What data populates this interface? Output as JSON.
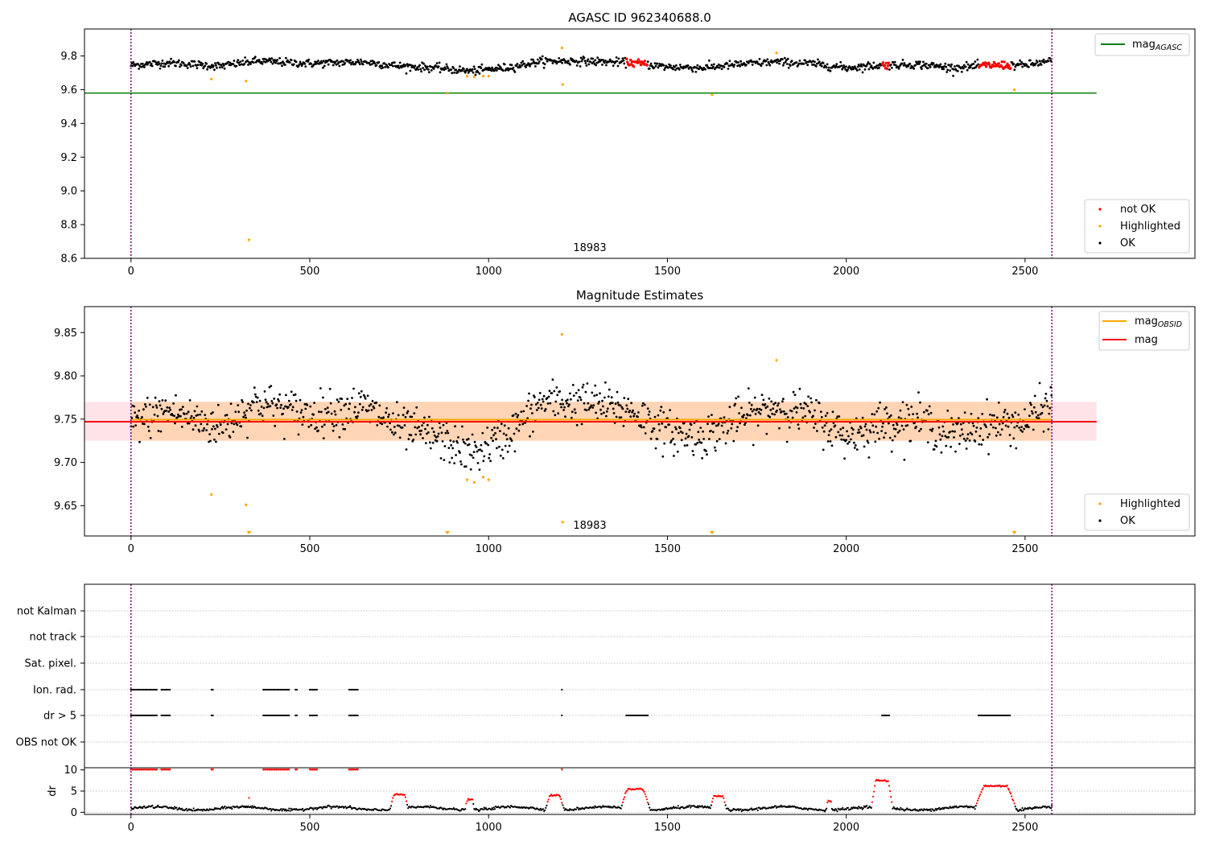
{
  "chart_data": [
    {
      "type": "scatter",
      "title": "AGASC ID 962340688.0",
      "xlabel": "",
      "ylabel": "",
      "xlim": [
        -130,
        2975
      ],
      "ylim": [
        8.6,
        9.96
      ],
      "x_ticks": [
        0,
        500,
        1000,
        1500,
        2000,
        2500
      ],
      "y_ticks": [
        8.6,
        8.8,
        9.0,
        9.2,
        9.4,
        9.6,
        9.8
      ],
      "vlines": [
        0,
        2575
      ],
      "vline_color": "#800080",
      "hline": {
        "name": "mag$_{AGASC}$",
        "label_main": "mag",
        "label_sub": "AGASC",
        "y": 9.58,
        "xmin": -130,
        "xmax": 2700,
        "color": "#008000"
      },
      "annotation": {
        "text": "18983",
        "x": 1225,
        "y": 8.63
      },
      "legend_top": [
        {
          "label_main": "mag",
          "label_sub": "AGASC",
          "color": "#008000",
          "marker": "line"
        }
      ],
      "legend_bottom": [
        {
          "label": "not OK",
          "color": "#ff0000",
          "marker": "dot"
        },
        {
          "label": "Highlighted",
          "color": "#ffa500",
          "marker": "dot"
        },
        {
          "label": "OK",
          "color": "#000000",
          "marker": "dot"
        }
      ],
      "series": [
        {
          "name": "OK",
          "color": "#000000",
          "trend_x": [
            0,
            100,
            250,
            350,
            500,
            650,
            750,
            850,
            950,
            1050,
            1150,
            1250,
            1400,
            1500,
            1600,
            1700,
            1800,
            1900,
            2000,
            2100,
            2200,
            2300,
            2400,
            2500,
            2575
          ],
          "trend_y": [
            9.745,
            9.76,
            9.74,
            9.77,
            9.755,
            9.765,
            9.74,
            9.73,
            9.71,
            9.73,
            9.77,
            9.77,
            9.76,
            9.735,
            9.73,
            9.75,
            9.765,
            9.755,
            9.73,
            9.745,
            9.75,
            9.73,
            9.745,
            9.745,
            9.77
          ]
        },
        {
          "name": "not OK",
          "color": "#ff0000",
          "x_ranges": [
            [
              1385,
              1445
            ],
            [
              2100,
              2120
            ],
            [
              2370,
              2460
            ]
          ],
          "y": 9.74
        },
        {
          "name": "Highlighted",
          "color": "#ffa500",
          "points": [
            [
              225,
              9.663
            ],
            [
              322,
              9.651
            ],
            [
              330,
              8.71
            ],
            [
              885,
              9.58
            ],
            [
              940,
              9.68
            ],
            [
              960,
              9.676
            ],
            [
              985,
              9.68
            ],
            [
              1000,
              9.68
            ],
            [
              1205,
              9.848
            ],
            [
              1207,
              9.631
            ],
            [
              1625,
              9.57
            ],
            [
              1805,
              9.818
            ],
            [
              2470,
              9.6
            ]
          ]
        }
      ]
    },
    {
      "type": "scatter",
      "title": "Magnitude Estimates",
      "xlabel": "",
      "ylabel": "",
      "xlim": [
        -130,
        2975
      ],
      "ylim": [
        9.615,
        9.88
      ],
      "x_ticks": [
        0,
        500,
        1000,
        1500,
        2000,
        2500
      ],
      "y_ticks": [
        9.65,
        9.7,
        9.75,
        9.8,
        9.85
      ],
      "y_tick_labels": [
        "9.65",
        "9.70",
        "9.75",
        "9.80",
        "9.85"
      ],
      "vlines": [
        0,
        2575
      ],
      "annotation": {
        "text": "18983",
        "x": 1225,
        "y": 9.628
      },
      "mag_line": {
        "name": "mag",
        "y": 9.747,
        "xmin": -130,
        "xmax": 2700,
        "color": "#ff0000"
      },
      "mag_obsid_line": {
        "label_main": "mag",
        "label_sub": "OBSID",
        "y": 9.748,
        "xmin": 0,
        "xmax": 2575,
        "color": "#ffa500"
      },
      "band": {
        "ymin": 9.725,
        "ymax": 9.77
      },
      "legend_top": [
        {
          "label_main": "mag",
          "label_sub": "OBSID",
          "color": "#ffa500",
          "marker": "line"
        },
        {
          "label_main": "mag",
          "label_sub": "",
          "color": "#ff0000",
          "marker": "line"
        }
      ],
      "legend_bottom": [
        {
          "label": "Highlighted",
          "color": "#ffa500",
          "marker": "dot"
        },
        {
          "label": "OK",
          "color": "#000000",
          "marker": "dot"
        }
      ],
      "series": [
        {
          "name": "OK",
          "color": "#000000",
          "trend_x": [
            0,
            100,
            250,
            350,
            500,
            650,
            750,
            850,
            950,
            1050,
            1150,
            1250,
            1400,
            1500,
            1600,
            1700,
            1800,
            1900,
            2000,
            2100,
            2200,
            2300,
            2400,
            2500,
            2575
          ],
          "trend_y": [
            9.745,
            9.76,
            9.74,
            9.77,
            9.755,
            9.765,
            9.74,
            9.73,
            9.71,
            9.73,
            9.77,
            9.77,
            9.76,
            9.735,
            9.73,
            9.75,
            9.765,
            9.755,
            9.73,
            9.745,
            9.75,
            9.73,
            9.745,
            9.745,
            9.77
          ]
        },
        {
          "name": "Highlighted",
          "color": "#ffa500",
          "points": [
            [
              225,
              9.663
            ],
            [
              322,
              9.651
            ],
            [
              940,
              9.68
            ],
            [
              960,
              9.677
            ],
            [
              985,
              9.683
            ],
            [
              1000,
              9.68
            ],
            [
              1205,
              9.848
            ],
            [
              1207,
              9.631
            ],
            [
              1805,
              9.818
            ]
          ],
          "below_range_x": [
            330,
            885,
            1625,
            2470
          ]
        }
      ]
    },
    {
      "type": "scatter",
      "title": "",
      "xlim": [
        -130,
        2975
      ],
      "x_ticks": [
        0,
        500,
        1000,
        1500,
        2000,
        2500
      ],
      "vlines": [
        0,
        2575
      ],
      "categories": [
        "not Kalman",
        "not track",
        "Sat. pixel.",
        "Ion. rad.",
        "dr > 5",
        "OBS not OK"
      ],
      "flag_ranges": {
        "Ion. rad.": [
          [
            0,
            75
          ],
          [
            85,
            110
          ],
          [
            225,
            230
          ],
          [
            370,
            445
          ],
          [
            460,
            465
          ],
          [
            500,
            520
          ],
          [
            610,
            635
          ],
          [
            1205,
            1208
          ]
        ],
        "dr > 5": [
          [
            0,
            75
          ],
          [
            85,
            110
          ],
          [
            225,
            230
          ],
          [
            370,
            445
          ],
          [
            460,
            465
          ],
          [
            500,
            520
          ],
          [
            610,
            635
          ],
          [
            1205,
            1208
          ],
          [
            1385,
            1445
          ],
          [
            2100,
            2120
          ],
          [
            2370,
            2460
          ]
        ]
      }
    },
    {
      "type": "line",
      "title": "",
      "ylabel": "dr",
      "xlim": [
        -130,
        2975
      ],
      "ylim": [
        -0.5,
        10.5
      ],
      "y_ticks": [
        0,
        5,
        10
      ],
      "x_ticks": [
        0,
        500,
        1000,
        1500,
        2000,
        2500
      ],
      "vlines": [
        0,
        2575
      ],
      "threshold": 5,
      "bumps": [
        {
          "x0": 725,
          "x1": 775,
          "peak": 4.2
        },
        {
          "x0": 935,
          "x1": 960,
          "peak": 3.0
        },
        {
          "x0": 1160,
          "x1": 1210,
          "peak": 4.0
        },
        {
          "x0": 1370,
          "x1": 1450,
          "peak": 5.4
        },
        {
          "x0": 1620,
          "x1": 1665,
          "peak": 3.8
        },
        {
          "x0": 1945,
          "x1": 1960,
          "peak": 2.8
        },
        {
          "x0": 2070,
          "x1": 2130,
          "peak": 7.5
        },
        {
          "x0": 2360,
          "x1": 2475,
          "peak": 6.2
        }
      ],
      "baseline": 0.9,
      "ten_marks": [
        [
          0,
          75
        ],
        [
          85,
          110
        ],
        [
          225,
          230
        ],
        [
          370,
          445
        ],
        [
          460,
          465
        ],
        [
          500,
          520
        ],
        [
          610,
          635
        ],
        [
          1205,
          1208
        ]
      ],
      "isolated_points": [
        [
          330,
          3.4
        ]
      ]
    }
  ]
}
